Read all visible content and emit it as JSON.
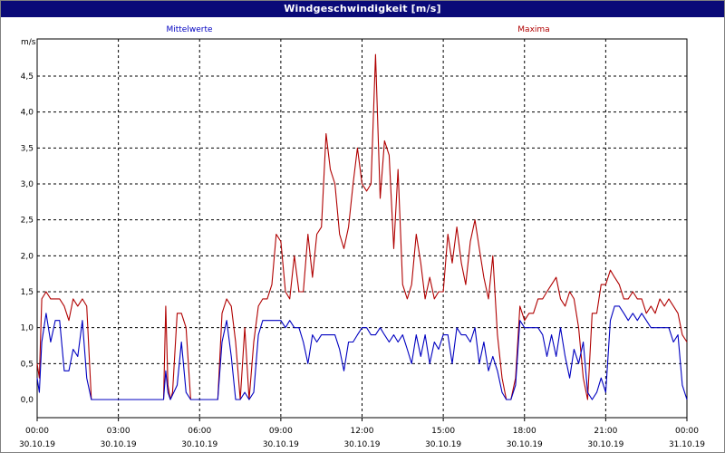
{
  "window": {
    "title": "Windgeschwindigkeit [m/s]"
  },
  "colors": {
    "title_bg": "#0a0a78",
    "series_mean": "#0000c0",
    "series_max": "#b00000",
    "grid": "#000000"
  },
  "chart_data": {
    "type": "line",
    "title": "Windgeschwindigkeit [m/s]",
    "ylabel": "m/s",
    "xlabel": "",
    "ylim": [
      0,
      5
    ],
    "yticks": [
      {
        "v": 0.0,
        "label": "0,0"
      },
      {
        "v": 0.5,
        "label": "0,5"
      },
      {
        "v": 1.0,
        "label": "1,0"
      },
      {
        "v": 1.5,
        "label": "1,5"
      },
      {
        "v": 2.0,
        "label": "2,0"
      },
      {
        "v": 2.5,
        "label": "2,5"
      },
      {
        "v": 3.0,
        "label": "3,0"
      },
      {
        "v": 3.5,
        "label": "3,5"
      },
      {
        "v": 4.0,
        "label": "4,0"
      },
      {
        "v": 4.5,
        "label": "4,5"
      }
    ],
    "xlim": [
      0,
      24
    ],
    "xticks": [
      {
        "h": 0,
        "time": "00:00",
        "date": "30.10.19"
      },
      {
        "h": 3,
        "time": "03:00",
        "date": "30.10.19"
      },
      {
        "h": 6,
        "time": "06:00",
        "date": "30.10.19"
      },
      {
        "h": 9,
        "time": "09:00",
        "date": "30.10.19"
      },
      {
        "h": 12,
        "time": "12:00",
        "date": "30.10.19"
      },
      {
        "h": 15,
        "time": "15:00",
        "date": "30.10.19"
      },
      {
        "h": 18,
        "time": "18:00",
        "date": "30.10.19"
      },
      {
        "h": 21,
        "time": "21:00",
        "date": "30.10.19"
      },
      {
        "h": 24,
        "time": "00:00",
        "date": "31.10.19"
      }
    ],
    "grid": true,
    "series": [
      {
        "name": "Mittelwerte",
        "color": "#0000c0",
        "points": [
          [
            0.0,
            0.3
          ],
          [
            0.08,
            0.1
          ],
          [
            0.17,
            0.8
          ],
          [
            0.33,
            1.2
          ],
          [
            0.5,
            0.8
          ],
          [
            0.67,
            1.1
          ],
          [
            0.83,
            1.1
          ],
          [
            1.0,
            0.4
          ],
          [
            1.17,
            0.4
          ],
          [
            1.33,
            0.7
          ],
          [
            1.5,
            0.6
          ],
          [
            1.67,
            1.1
          ],
          [
            1.83,
            0.3
          ],
          [
            2.0,
            0.0
          ],
          [
            2.5,
            0.0
          ],
          [
            3.0,
            0.0
          ],
          [
            3.5,
            0.0
          ],
          [
            4.0,
            0.0
          ],
          [
            4.5,
            0.0
          ],
          [
            4.67,
            0.0
          ],
          [
            4.75,
            0.4
          ],
          [
            4.83,
            0.1
          ],
          [
            4.92,
            0.0
          ],
          [
            5.17,
            0.2
          ],
          [
            5.33,
            0.8
          ],
          [
            5.5,
            0.1
          ],
          [
            5.67,
            0.0
          ],
          [
            6.0,
            0.0
          ],
          [
            6.5,
            0.0
          ],
          [
            6.67,
            0.0
          ],
          [
            6.83,
            0.8
          ],
          [
            7.0,
            1.1
          ],
          [
            7.17,
            0.6
          ],
          [
            7.33,
            0.0
          ],
          [
            7.5,
            0.0
          ],
          [
            7.67,
            0.1
          ],
          [
            7.83,
            0.0
          ],
          [
            8.0,
            0.1
          ],
          [
            8.17,
            0.9
          ],
          [
            8.33,
            1.1
          ],
          [
            8.67,
            1.1
          ],
          [
            9.0,
            1.1
          ],
          [
            9.17,
            1.0
          ],
          [
            9.33,
            1.1
          ],
          [
            9.5,
            1.0
          ],
          [
            9.67,
            1.0
          ],
          [
            9.83,
            0.8
          ],
          [
            10.0,
            0.5
          ],
          [
            10.17,
            0.9
          ],
          [
            10.33,
            0.8
          ],
          [
            10.5,
            0.9
          ],
          [
            10.83,
            0.9
          ],
          [
            11.0,
            0.9
          ],
          [
            11.17,
            0.7
          ],
          [
            11.33,
            0.4
          ],
          [
            11.5,
            0.8
          ],
          [
            11.67,
            0.8
          ],
          [
            11.83,
            0.9
          ],
          [
            12.0,
            1.0
          ],
          [
            12.17,
            1.0
          ],
          [
            12.33,
            0.9
          ],
          [
            12.5,
            0.9
          ],
          [
            12.67,
            1.0
          ],
          [
            12.83,
            0.9
          ],
          [
            13.0,
            0.8
          ],
          [
            13.17,
            0.9
          ],
          [
            13.33,
            0.8
          ],
          [
            13.5,
            0.9
          ],
          [
            13.67,
            0.7
          ],
          [
            13.83,
            0.5
          ],
          [
            14.0,
            0.9
          ],
          [
            14.17,
            0.6
          ],
          [
            14.33,
            0.9
          ],
          [
            14.5,
            0.5
          ],
          [
            14.67,
            0.8
          ],
          [
            14.83,
            0.7
          ],
          [
            15.0,
            0.9
          ],
          [
            15.17,
            0.9
          ],
          [
            15.33,
            0.5
          ],
          [
            15.5,
            1.0
          ],
          [
            15.67,
            0.9
          ],
          [
            15.83,
            0.9
          ],
          [
            16.0,
            0.8
          ],
          [
            16.17,
            1.0
          ],
          [
            16.33,
            0.5
          ],
          [
            16.5,
            0.8
          ],
          [
            16.67,
            0.4
          ],
          [
            16.83,
            0.6
          ],
          [
            17.0,
            0.4
          ],
          [
            17.17,
            0.1
          ],
          [
            17.33,
            0.0
          ],
          [
            17.5,
            0.0
          ],
          [
            17.67,
            0.2
          ],
          [
            17.83,
            1.1
          ],
          [
            18.0,
            1.0
          ],
          [
            18.17,
            1.0
          ],
          [
            18.33,
            1.0
          ],
          [
            18.5,
            1.0
          ],
          [
            18.67,
            0.9
          ],
          [
            18.83,
            0.6
          ],
          [
            19.0,
            0.9
          ],
          [
            19.17,
            0.6
          ],
          [
            19.33,
            1.0
          ],
          [
            19.5,
            0.6
          ],
          [
            19.67,
            0.3
          ],
          [
            19.83,
            0.7
          ],
          [
            20.0,
            0.5
          ],
          [
            20.17,
            0.8
          ],
          [
            20.33,
            0.1
          ],
          [
            20.5,
            0.0
          ],
          [
            20.67,
            0.1
          ],
          [
            20.83,
            0.3
          ],
          [
            21.0,
            0.1
          ],
          [
            21.17,
            1.1
          ],
          [
            21.33,
            1.3
          ],
          [
            21.5,
            1.3
          ],
          [
            21.67,
            1.2
          ],
          [
            21.83,
            1.1
          ],
          [
            22.0,
            1.2
          ],
          [
            22.17,
            1.1
          ],
          [
            22.33,
            1.2
          ],
          [
            22.5,
            1.1
          ],
          [
            22.67,
            1.0
          ],
          [
            23.0,
            1.0
          ],
          [
            23.33,
            1.0
          ],
          [
            23.5,
            0.8
          ],
          [
            23.67,
            0.9
          ],
          [
            23.83,
            0.2
          ],
          [
            24.0,
            0.0
          ]
        ]
      },
      {
        "name": "Maxima",
        "color": "#b00000",
        "points": [
          [
            0.0,
            0.5
          ],
          [
            0.08,
            0.3
          ],
          [
            0.17,
            1.4
          ],
          [
            0.33,
            1.5
          ],
          [
            0.5,
            1.4
          ],
          [
            0.67,
            1.4
          ],
          [
            0.83,
            1.4
          ],
          [
            1.0,
            1.3
          ],
          [
            1.17,
            1.1
          ],
          [
            1.33,
            1.4
          ],
          [
            1.5,
            1.3
          ],
          [
            1.67,
            1.4
          ],
          [
            1.83,
            1.3
          ],
          [
            2.0,
            0.0
          ],
          [
            2.5,
            0.0
          ],
          [
            3.0,
            0.0
          ],
          [
            3.5,
            0.0
          ],
          [
            4.0,
            0.0
          ],
          [
            4.5,
            0.0
          ],
          [
            4.67,
            0.0
          ],
          [
            4.75,
            1.3
          ],
          [
            4.83,
            0.2
          ],
          [
            4.92,
            0.0
          ],
          [
            5.0,
            0.1
          ],
          [
            5.17,
            1.2
          ],
          [
            5.33,
            1.2
          ],
          [
            5.5,
            1.0
          ],
          [
            5.67,
            0.0
          ],
          [
            6.0,
            0.0
          ],
          [
            6.5,
            0.0
          ],
          [
            6.67,
            0.0
          ],
          [
            6.83,
            1.2
          ],
          [
            7.0,
            1.4
          ],
          [
            7.17,
            1.3
          ],
          [
            7.33,
            0.8
          ],
          [
            7.5,
            0.0
          ],
          [
            7.67,
            1.0
          ],
          [
            7.83,
            0.0
          ],
          [
            8.0,
            0.8
          ],
          [
            8.17,
            1.3
          ],
          [
            8.33,
            1.4
          ],
          [
            8.5,
            1.4
          ],
          [
            8.67,
            1.6
          ],
          [
            8.83,
            2.3
          ],
          [
            9.0,
            2.2
          ],
          [
            9.17,
            1.5
          ],
          [
            9.33,
            1.4
          ],
          [
            9.5,
            2.0
          ],
          [
            9.67,
            1.5
          ],
          [
            9.83,
            1.5
          ],
          [
            10.0,
            2.3
          ],
          [
            10.17,
            1.7
          ],
          [
            10.33,
            2.3
          ],
          [
            10.5,
            2.4
          ],
          [
            10.67,
            3.7
          ],
          [
            10.83,
            3.2
          ],
          [
            11.0,
            3.0
          ],
          [
            11.17,
            2.3
          ],
          [
            11.33,
            2.1
          ],
          [
            11.5,
            2.4
          ],
          [
            11.67,
            3.0
          ],
          [
            11.83,
            3.5
          ],
          [
            12.0,
            3.0
          ],
          [
            12.17,
            2.9
          ],
          [
            12.33,
            3.0
          ],
          [
            12.5,
            4.8
          ],
          [
            12.67,
            2.8
          ],
          [
            12.83,
            3.6
          ],
          [
            13.0,
            3.4
          ],
          [
            13.17,
            2.1
          ],
          [
            13.33,
            3.2
          ],
          [
            13.5,
            1.6
          ],
          [
            13.67,
            1.4
          ],
          [
            13.83,
            1.6
          ],
          [
            14.0,
            2.3
          ],
          [
            14.17,
            1.9
          ],
          [
            14.33,
            1.4
          ],
          [
            14.5,
            1.7
          ],
          [
            14.67,
            1.4
          ],
          [
            14.83,
            1.5
          ],
          [
            15.0,
            1.5
          ],
          [
            15.17,
            2.3
          ],
          [
            15.33,
            1.9
          ],
          [
            15.5,
            2.4
          ],
          [
            15.67,
            1.9
          ],
          [
            15.83,
            1.6
          ],
          [
            16.0,
            2.2
          ],
          [
            16.17,
            2.5
          ],
          [
            16.33,
            2.1
          ],
          [
            16.5,
            1.7
          ],
          [
            16.67,
            1.4
          ],
          [
            16.83,
            2.0
          ],
          [
            17.0,
            0.9
          ],
          [
            17.17,
            0.3
          ],
          [
            17.33,
            0.0
          ],
          [
            17.5,
            0.0
          ],
          [
            17.67,
            0.3
          ],
          [
            17.83,
            1.3
          ],
          [
            18.0,
            1.1
          ],
          [
            18.17,
            1.2
          ],
          [
            18.33,
            1.2
          ],
          [
            18.5,
            1.4
          ],
          [
            18.67,
            1.4
          ],
          [
            18.83,
            1.5
          ],
          [
            19.0,
            1.6
          ],
          [
            19.17,
            1.7
          ],
          [
            19.33,
            1.4
          ],
          [
            19.5,
            1.3
          ],
          [
            19.67,
            1.5
          ],
          [
            19.83,
            1.4
          ],
          [
            20.0,
            1.0
          ],
          [
            20.17,
            0.3
          ],
          [
            20.33,
            0.0
          ],
          [
            20.5,
            1.2
          ],
          [
            20.67,
            1.2
          ],
          [
            20.83,
            1.6
          ],
          [
            21.0,
            1.6
          ],
          [
            21.17,
            1.8
          ],
          [
            21.33,
            1.7
          ],
          [
            21.5,
            1.6
          ],
          [
            21.67,
            1.4
          ],
          [
            21.83,
            1.4
          ],
          [
            22.0,
            1.5
          ],
          [
            22.17,
            1.4
          ],
          [
            22.33,
            1.4
          ],
          [
            22.5,
            1.2
          ],
          [
            22.67,
            1.3
          ],
          [
            22.83,
            1.2
          ],
          [
            23.0,
            1.4
          ],
          [
            23.17,
            1.3
          ],
          [
            23.33,
            1.4
          ],
          [
            23.5,
            1.3
          ],
          [
            23.67,
            1.2
          ],
          [
            23.83,
            0.9
          ],
          [
            24.0,
            0.8
          ]
        ]
      }
    ]
  }
}
